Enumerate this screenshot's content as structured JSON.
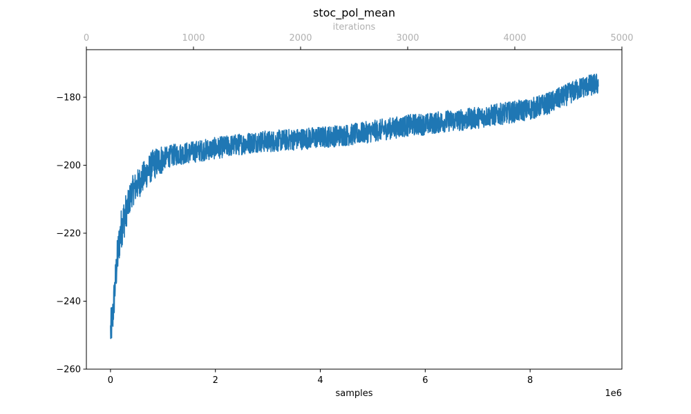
{
  "chart_data": {
    "type": "line",
    "title": "stoc_pol_mean",
    "xlabel": "samples",
    "x_offset_label": "1e6",
    "xlim": [
      -0.46,
      9.75
    ],
    "x_ticks": [
      0,
      2,
      4,
      6,
      8
    ],
    "x_tick_labels": [
      "0",
      "2",
      "4",
      "6",
      "8"
    ],
    "top_xlabel": "iterations",
    "top_xlim": [
      0,
      5000
    ],
    "top_x_ticks": [
      0,
      1000,
      2000,
      3000,
      4000,
      5000
    ],
    "top_x_tick_labels": [
      "0",
      "1000",
      "2000",
      "3000",
      "4000",
      "5000"
    ],
    "ylim": [
      -260,
      -166
    ],
    "y_ticks": [
      -260,
      -240,
      -220,
      -200,
      -180
    ],
    "y_tick_labels": [
      "−260",
      "−240",
      "−220",
      "−200",
      "−180"
    ],
    "grid": false,
    "series": [
      {
        "color": "#1f77b4",
        "x": [
          0,
          0.02,
          0.04,
          0.06,
          0.08,
          0.1,
          0.12,
          0.15,
          0.18,
          0.2,
          0.25,
          0.3,
          0.35,
          0.4,
          0.5,
          0.6,
          0.7,
          0.8,
          0.9,
          1.0,
          1.2,
          1.4,
          1.6,
          1.8,
          2.0,
          2.2,
          2.4,
          2.6,
          2.8,
          3.0,
          3.2,
          3.4,
          3.6,
          3.8,
          4.0,
          4.2,
          4.4,
          4.6,
          4.8,
          5.0,
          5.2,
          5.4,
          5.6,
          5.8,
          6.0,
          6.2,
          6.4,
          6.6,
          6.8,
          7.0,
          7.2,
          7.4,
          7.6,
          7.8,
          8.0,
          8.2,
          8.4,
          8.6,
          8.8,
          9.0,
          9.3
        ],
        "y": [
          -249,
          -247,
          -245,
          -241,
          -237,
          -233,
          -229,
          -225,
          -221,
          -219,
          -216,
          -214,
          -211,
          -208,
          -206,
          -204,
          -202,
          -200,
          -199,
          -198,
          -197,
          -196.5,
          -196,
          -195.5,
          -195,
          -194.5,
          -194,
          -193.5,
          -193,
          -193,
          -192.8,
          -192.5,
          -192.3,
          -192,
          -191.8,
          -191.5,
          -191.2,
          -191,
          -190.5,
          -190,
          -189.5,
          -189,
          -188.5,
          -188,
          -188,
          -187.5,
          -187,
          -186.8,
          -186.5,
          -186,
          -185.5,
          -185,
          -184.5,
          -184,
          -183.5,
          -182.5,
          -181.5,
          -180,
          -178.5,
          -177,
          -176
        ]
      }
    ]
  }
}
